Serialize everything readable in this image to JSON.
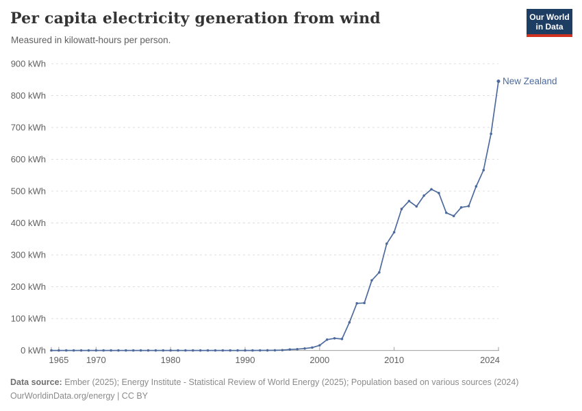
{
  "header": {
    "title": "Per capita electricity generation from wind",
    "subtitle": "Measured in kilowatt-hours per person.",
    "logo": {
      "line1": "Our World",
      "line2": "in Data",
      "bg_color": "#1D3D63",
      "bar_color": "#D0321F"
    }
  },
  "chart_data": {
    "type": "line",
    "title": "Per capita electricity generation from wind",
    "ylabel": "",
    "xlabel": "",
    "unit_suffix": " kWh",
    "grid": true,
    "ylim": [
      0,
      900
    ],
    "y_ticks": [
      0,
      100,
      200,
      300,
      400,
      500,
      600,
      700,
      800,
      900
    ],
    "x_domain": [
      1964,
      2024
    ],
    "x_ticks": [
      1965,
      1970,
      1980,
      1990,
      2000,
      2010,
      2024
    ],
    "legend_position": "end-of-line",
    "series": [
      {
        "name": "New Zealand",
        "color": "#4C6A9C",
        "start_year": 1964,
        "years": [
          1964,
          1965,
          1966,
          1967,
          1968,
          1969,
          1970,
          1971,
          1972,
          1973,
          1974,
          1975,
          1976,
          1977,
          1978,
          1979,
          1980,
          1981,
          1982,
          1983,
          1984,
          1985,
          1986,
          1987,
          1988,
          1989,
          1990,
          1991,
          1992,
          1993,
          1994,
          1995,
          1996,
          1997,
          1998,
          1999,
          2000,
          2001,
          2002,
          2003,
          2004,
          2005,
          2006,
          2007,
          2008,
          2009,
          2010,
          2011,
          2012,
          2013,
          2014,
          2015,
          2016,
          2017,
          2018,
          2019,
          2020,
          2021,
          2022,
          2023,
          2024
        ],
        "values": [
          0,
          0,
          0,
          0,
          0,
          0,
          0,
          0,
          0,
          0,
          0,
          0,
          0,
          0,
          0,
          0,
          0,
          0,
          0,
          0,
          0,
          0,
          0,
          0,
          0,
          0,
          0,
          0,
          0.2,
          0.3,
          0.5,
          1,
          3,
          4,
          6,
          9,
          16,
          34,
          38,
          36,
          88,
          148,
          149,
          220,
          245,
          335,
          371,
          444,
          469,
          452,
          486,
          506,
          494,
          432,
          422,
          449,
          453,
          515,
          566,
          680,
          845
        ]
      }
    ]
  },
  "footer": {
    "source_label": "Data source:",
    "source_text": " Ember (2025); Energy Institute - Statistical Review of World Energy (2025); Population based on various sources (2024)",
    "license_line": "OurWorldinData.org/energy | CC BY"
  },
  "colors": {
    "line": "#4C6A9C",
    "gridline": "#dcdcdc",
    "axis": "#9d9d9d",
    "tick_label": "#606060"
  }
}
